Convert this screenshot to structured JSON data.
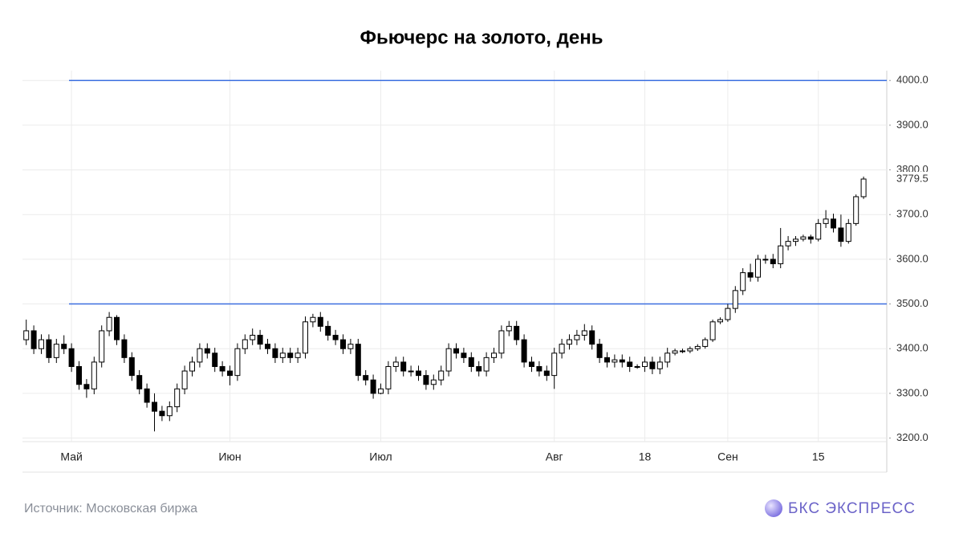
{
  "chart_data": {
    "type": "candlestick",
    "title": "Фьючерс на золото, день",
    "categories": [
      null,
      null,
      null,
      null,
      null,
      null,
      "Май",
      null,
      null,
      null,
      null,
      null,
      null,
      null,
      null,
      null,
      null,
      null,
      null,
      null,
      null,
      null,
      null,
      null,
      null,
      null,
      null,
      "Июн",
      null,
      null,
      null,
      null,
      null,
      null,
      null,
      null,
      null,
      null,
      null,
      null,
      null,
      null,
      null,
      null,
      null,
      null,
      null,
      "Июл",
      null,
      null,
      null,
      null,
      null,
      null,
      null,
      null,
      null,
      null,
      null,
      null,
      null,
      null,
      null,
      null,
      null,
      null,
      null,
      null,
      null,
      null,
      "Авг",
      null,
      null,
      null,
      null,
      null,
      null,
      null,
      null,
      null,
      null,
      null,
      "18",
      null,
      null,
      null,
      null,
      null,
      null,
      null,
      null,
      null,
      null,
      "Сен",
      null,
      null,
      null,
      null,
      null,
      null,
      null,
      null,
      null,
      null,
      null,
      "15",
      null,
      null,
      null,
      null,
      null,
      null
    ],
    "open": [
      3420,
      3440,
      3400,
      3420,
      3380,
      3410,
      3400,
      3360,
      3320,
      3310,
      3370,
      3440,
      3470,
      3420,
      3380,
      3340,
      3310,
      3280,
      3260,
      3250,
      3270,
      3310,
      3350,
      3370,
      3400,
      3390,
      3360,
      3350,
      3340,
      3400,
      3420,
      3430,
      3410,
      3400,
      3380,
      3390,
      3380,
      3390,
      3460,
      3470,
      3450,
      3430,
      3420,
      3400,
      3410,
      3340,
      3330,
      3300,
      3310,
      3360,
      3370,
      3350,
      3350,
      3340,
      3320,
      3330,
      3350,
      3400,
      3390,
      3380,
      3360,
      3350,
      3380,
      3390,
      3440,
      3450,
      3420,
      3370,
      3360,
      3350,
      3340,
      3390,
      3410,
      3420,
      3430,
      3440,
      3410,
      3380,
      3370,
      3375,
      3370,
      3360,
      3360,
      3370,
      3355,
      3370,
      3390,
      3395,
      3395,
      3400,
      3405,
      3420,
      3460,
      3465,
      3490,
      3530,
      3570,
      3560,
      3600,
      3600,
      3590,
      3630,
      3640,
      3645,
      3650,
      3645,
      3680,
      3690,
      3670,
      3640,
      3680,
      3740
    ],
    "high": [
      3465,
      3452,
      3432,
      3432,
      3422,
      3430,
      3412,
      3372,
      3332,
      3382,
      3452,
      3482,
      3475,
      3432,
      3392,
      3352,
      3322,
      3300,
      3272,
      3282,
      3322,
      3362,
      3382,
      3412,
      3412,
      3402,
      3372,
      3362,
      3412,
      3432,
      3445,
      3442,
      3422,
      3412,
      3402,
      3402,
      3402,
      3472,
      3478,
      3482,
      3462,
      3442,
      3432,
      3422,
      3422,
      3352,
      3342,
      3322,
      3372,
      3382,
      3382,
      3362,
      3362,
      3352,
      3342,
      3362,
      3412,
      3412,
      3402,
      3392,
      3372,
      3392,
      3402,
      3452,
      3462,
      3462,
      3432,
      3382,
      3372,
      3362,
      3402,
      3422,
      3432,
      3442,
      3455,
      3452,
      3422,
      3392,
      3387,
      3387,
      3382,
      3365,
      3382,
      3382,
      3382,
      3402,
      3400,
      3400,
      3405,
      3410,
      3425,
      3465,
      3470,
      3500,
      3540,
      3580,
      3590,
      3610,
      3610,
      3612,
      3670,
      3652,
      3652,
      3655,
      3655,
      3690,
      3710,
      3702,
      3700,
      3690,
      3745,
      3785
    ],
    "low": [
      3408,
      3388,
      3388,
      3368,
      3368,
      3388,
      3348,
      3308,
      3290,
      3298,
      3358,
      3428,
      3408,
      3368,
      3328,
      3298,
      3268,
      3215,
      3238,
      3238,
      3258,
      3298,
      3338,
      3358,
      3378,
      3348,
      3338,
      3318,
      3328,
      3388,
      3408,
      3398,
      3388,
      3368,
      3368,
      3368,
      3368,
      3378,
      3448,
      3438,
      3418,
      3408,
      3388,
      3388,
      3328,
      3318,
      3288,
      3298,
      3298,
      3348,
      3338,
      3338,
      3328,
      3308,
      3308,
      3318,
      3338,
      3378,
      3368,
      3348,
      3338,
      3338,
      3368,
      3378,
      3428,
      3408,
      3358,
      3348,
      3338,
      3328,
      3310,
      3378,
      3398,
      3408,
      3418,
      3398,
      3368,
      3358,
      3358,
      3358,
      3348,
      3355,
      3348,
      3343,
      3343,
      3358,
      3385,
      3390,
      3390,
      3395,
      3400,
      3415,
      3455,
      3460,
      3480,
      3520,
      3550,
      3550,
      3590,
      3580,
      3580,
      3620,
      3630,
      3640,
      3635,
      3640,
      3670,
      3660,
      3628,
      3635,
      3675,
      3735
    ],
    "close": [
      3440,
      3400,
      3420,
      3380,
      3410,
      3400,
      3360,
      3320,
      3310,
      3370,
      3440,
      3470,
      3420,
      3380,
      3340,
      3310,
      3280,
      3260,
      3250,
      3270,
      3310,
      3350,
      3370,
      3400,
      3390,
      3360,
      3350,
      3340,
      3400,
      3420,
      3430,
      3410,
      3400,
      3380,
      3390,
      3380,
      3390,
      3460,
      3470,
      3450,
      3430,
      3420,
      3400,
      3410,
      3340,
      3330,
      3300,
      3310,
      3360,
      3370,
      3350,
      3350,
      3340,
      3320,
      3330,
      3350,
      3400,
      3390,
      3380,
      3360,
      3350,
      3380,
      3390,
      3440,
      3450,
      3420,
      3370,
      3360,
      3350,
      3340,
      3390,
      3410,
      3420,
      3430,
      3440,
      3410,
      3380,
      3370,
      3375,
      3370,
      3360,
      3360,
      3370,
      3355,
      3370,
      3390,
      3395,
      3395,
      3400,
      3405,
      3420,
      3460,
      3465,
      3490,
      3530,
      3570,
      3560,
      3600,
      3600,
      3590,
      3630,
      3640,
      3645,
      3650,
      3645,
      3680,
      3690,
      3670,
      3640,
      3680,
      3740,
      3779.5
    ],
    "up_color": "#ffffff",
    "down_color": "#000000",
    "ylim": [
      3192,
      4022
    ],
    "yticks": [
      {
        "value": 3200,
        "label": "3200.0"
      },
      {
        "value": 3300,
        "label": "3300.0"
      },
      {
        "value": 3400,
        "label": "3400.0"
      },
      {
        "value": 3500,
        "label": "3500.0"
      },
      {
        "value": 3600,
        "label": "3600.0"
      },
      {
        "value": 3700,
        "label": "3700.0"
      },
      {
        "value": 3800,
        "label": "3800.0"
      },
      {
        "value": 3900,
        "label": "3900.0"
      },
      {
        "value": 4000,
        "label": "4000.0"
      }
    ],
    "hlines": [
      4000,
      3500
    ],
    "hline_color": "#3b6fe0",
    "grid": true
  },
  "footer": {
    "source": "Источник: Московская биржа",
    "logo": "БКС ЭКСПРЕСС"
  }
}
